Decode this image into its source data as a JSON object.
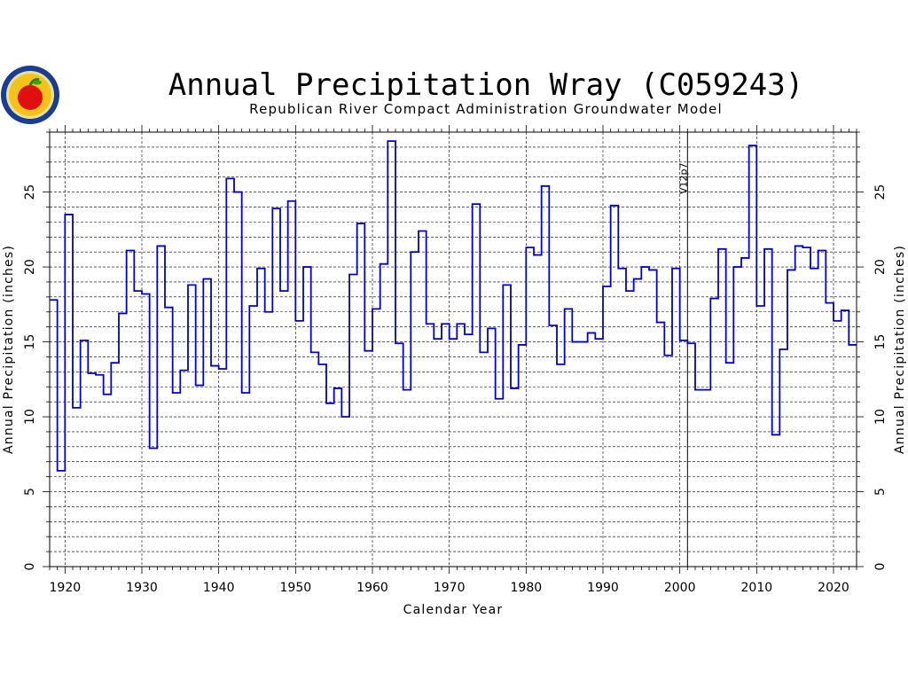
{
  "chart_data": {
    "type": "line",
    "style": "step",
    "title": "Annual Precipitation Wray (C059243)",
    "subtitle": "Republican River Compact Administration Groundwater Model",
    "xlabel": "Calendar Year",
    "ylabel": "Annual Precipitation (inches)",
    "xlim": [
      1918,
      2023
    ],
    "ylim": [
      0,
      29
    ],
    "x_ticks": [
      1920,
      1930,
      1940,
      1950,
      1960,
      1970,
      1980,
      1990,
      2000,
      2010,
      2020
    ],
    "y_ticks": [
      0,
      5,
      10,
      15,
      20,
      25
    ],
    "grid": true,
    "series_color": "#0000cc",
    "annotation": {
      "label": "V12p7",
      "x": 2001
    },
    "series": [
      {
        "x": [
          1918,
          1919,
          1920,
          1921,
          1922,
          1923,
          1924,
          1925,
          1926,
          1927,
          1928,
          1929,
          1930,
          1931,
          1932,
          1933,
          1934,
          1935,
          1936,
          1937,
          1938,
          1939,
          1940,
          1941,
          1942,
          1943,
          1944,
          1945,
          1946,
          1947,
          1948,
          1949,
          1950,
          1951,
          1952,
          1953,
          1954,
          1955,
          1956,
          1957,
          1958,
          1959,
          1960,
          1961,
          1962,
          1963,
          1964,
          1965,
          1966,
          1967,
          1968,
          1969,
          1970,
          1971,
          1972,
          1973,
          1974,
          1975,
          1976,
          1977,
          1978,
          1979,
          1980,
          1981,
          1982,
          1983,
          1984,
          1985,
          1986,
          1987,
          1988,
          1989,
          1990,
          1991,
          1992,
          1993,
          1994,
          1995,
          1996,
          1997,
          1998,
          1999,
          2000,
          2001,
          2002,
          2003,
          2004,
          2005,
          2006,
          2007,
          2008,
          2009,
          2010,
          2011,
          2012,
          2013,
          2014,
          2015,
          2016,
          2017,
          2018,
          2019,
          2020,
          2021,
          2022
        ],
        "values": [
          17.8,
          6.4,
          23.5,
          10.6,
          15.1,
          12.9,
          12.8,
          11.5,
          13.6,
          16.9,
          21.1,
          18.4,
          18.2,
          7.9,
          21.4,
          17.3,
          11.6,
          13.1,
          18.8,
          12.1,
          19.2,
          13.4,
          13.2,
          25.9,
          25.0,
          11.6,
          17.4,
          19.9,
          17.0,
          23.9,
          18.4,
          24.4,
          16.4,
          20.0,
          14.3,
          13.5,
          10.9,
          11.9,
          10.0,
          19.5,
          22.9,
          14.4,
          17.2,
          20.2,
          28.4,
          14.9,
          11.8,
          21.0,
          22.4,
          16.2,
          15.2,
          16.2,
          15.2,
          16.2,
          15.5,
          24.2,
          14.3,
          15.9,
          11.2,
          18.8,
          11.9,
          14.8,
          21.3,
          20.8,
          25.4,
          16.1,
          13.5,
          17.2,
          15.0,
          15.0,
          15.6,
          15.2,
          18.7,
          24.1,
          19.9,
          18.4,
          19.2,
          20.0,
          19.8,
          16.3,
          14.1,
          19.9,
          15.1,
          14.9,
          11.8,
          11.8,
          17.9,
          21.2,
          13.6,
          20.0,
          20.6,
          28.1,
          17.4,
          21.2,
          8.8,
          14.5,
          19.8,
          21.4,
          21.3,
          19.9,
          21.1,
          17.6,
          16.4,
          17.1,
          14.8
        ]
      }
    ]
  },
  "logo": {
    "icon": "state-seal-apple-logo",
    "ring_color": "#1a3d8f",
    "apple_color": "#e01010"
  }
}
